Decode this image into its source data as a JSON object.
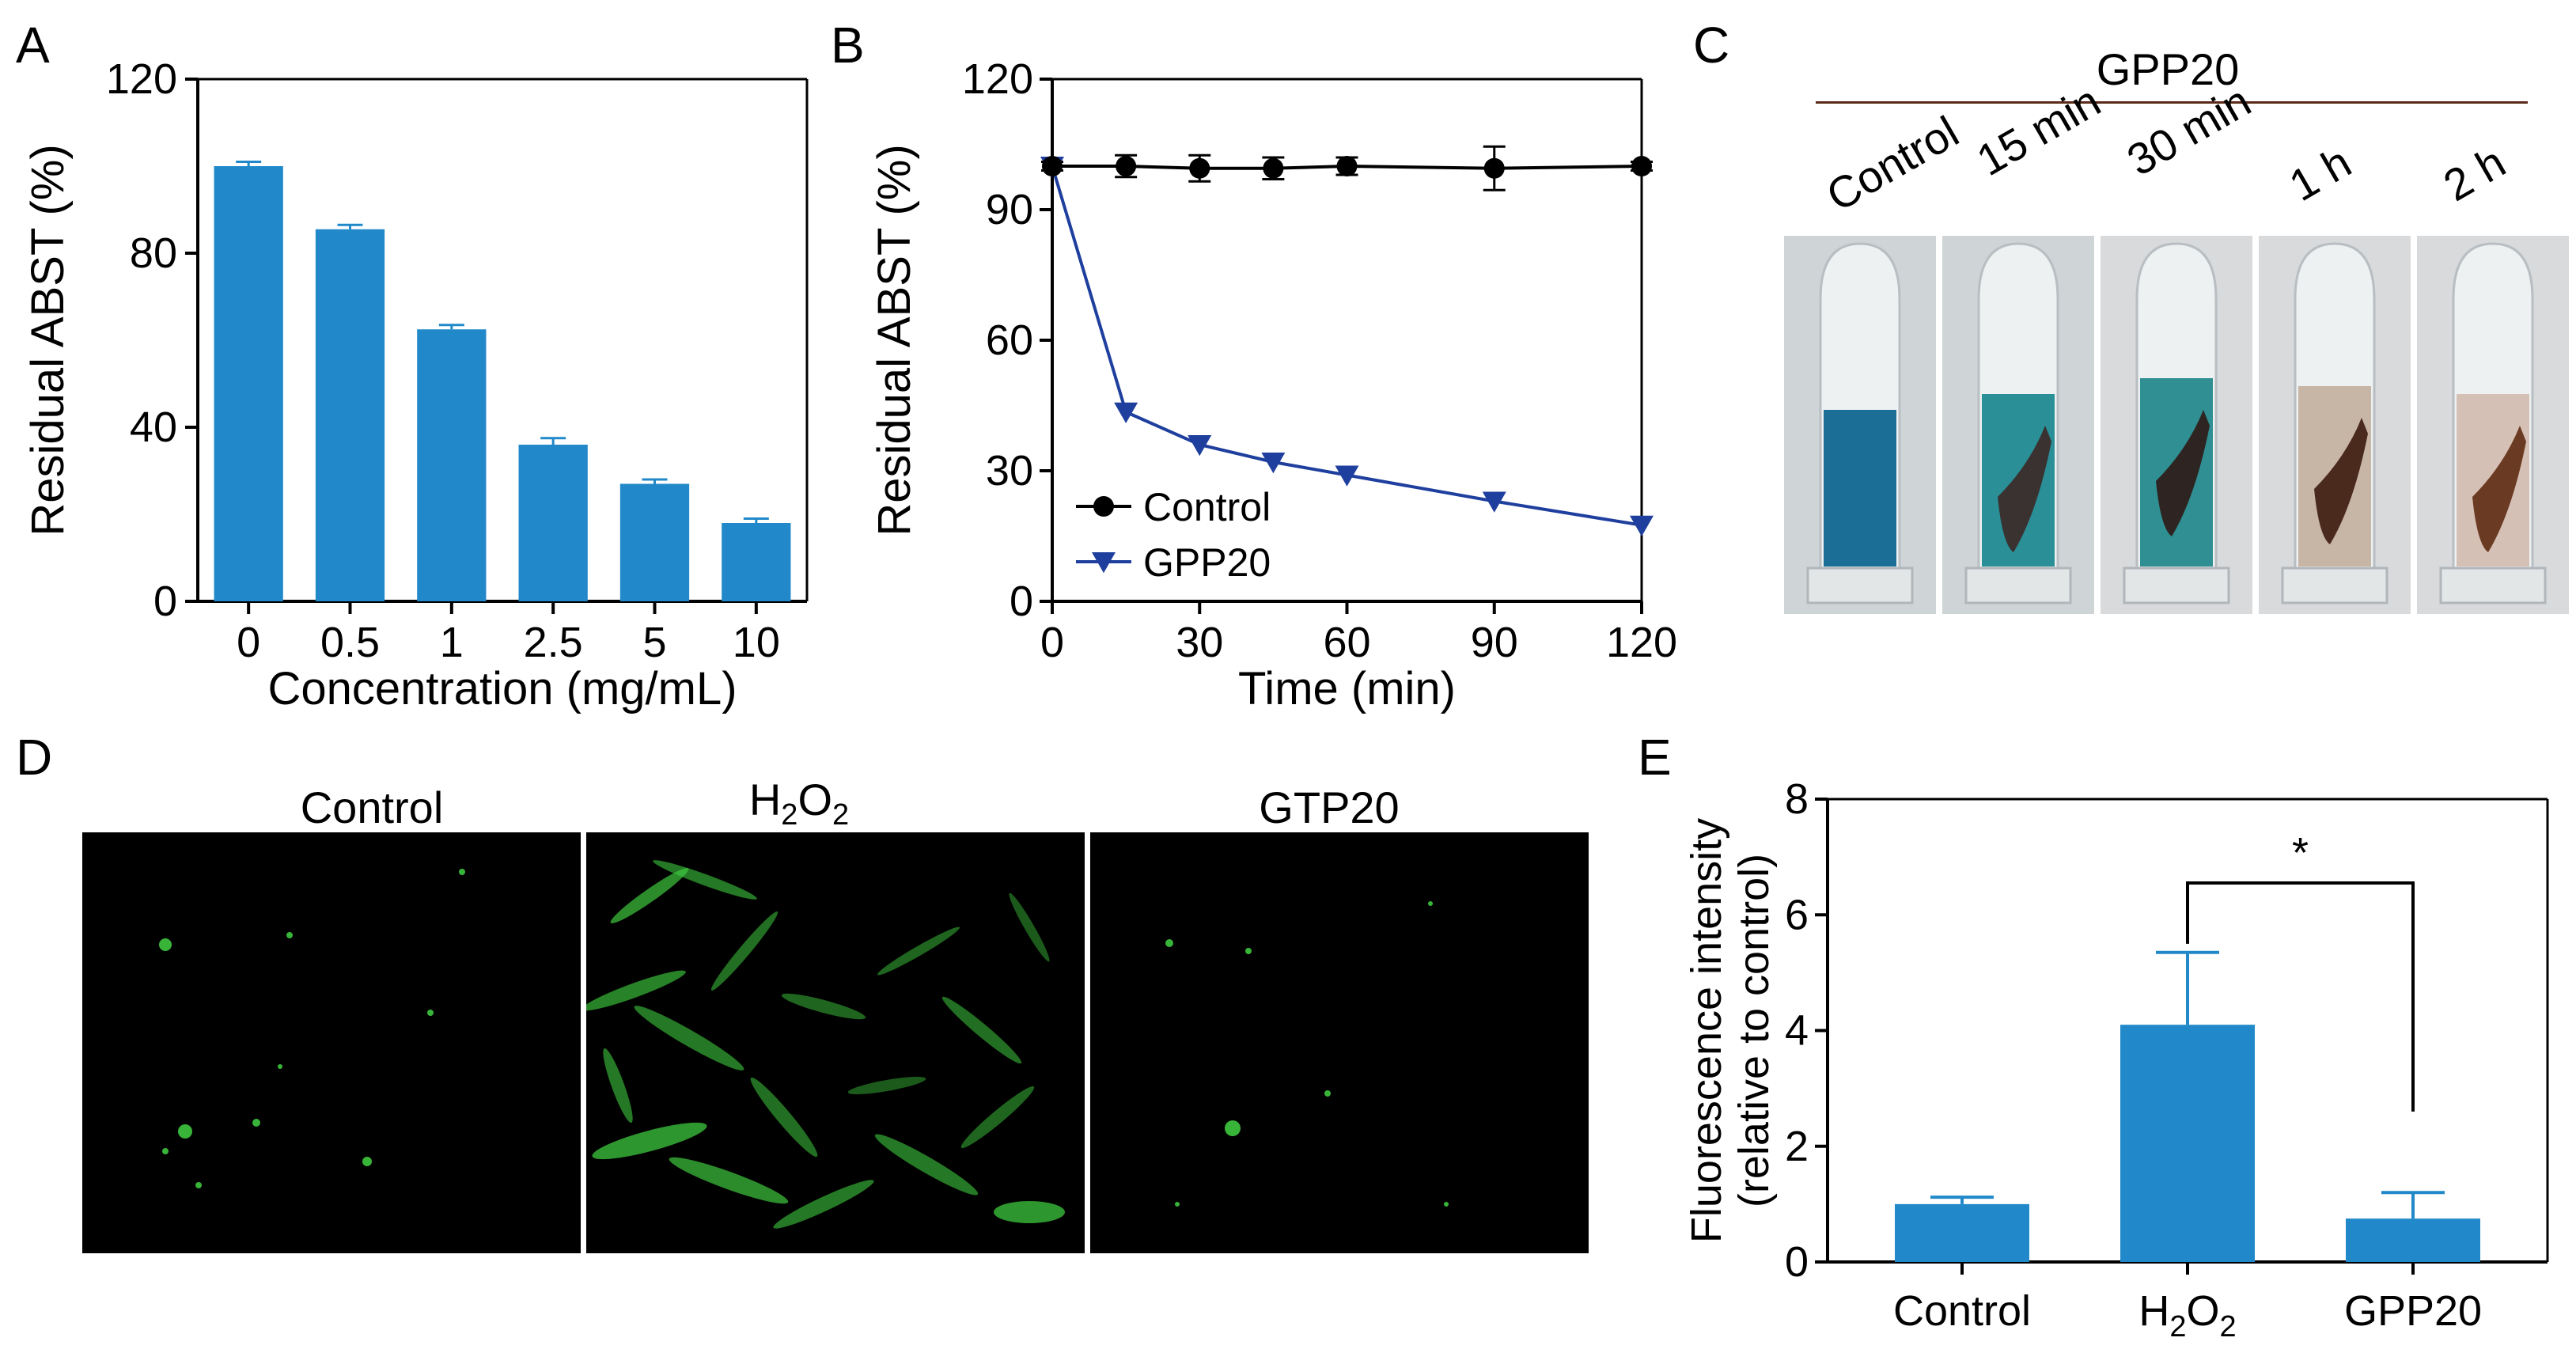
{
  "panels": {
    "a": "A",
    "b": "B",
    "c": "C",
    "d": "D",
    "e": "E"
  },
  "colors": {
    "bar": "#2189c9",
    "control_line": "#000000",
    "gpp20_line": "#1f3f9e",
    "abts_blue": "#1b6e95",
    "fluor_green": "#3ec83e"
  },
  "chart_data": [
    {
      "panel": "A",
      "type": "bar",
      "categories": [
        "0",
        "0.5",
        "1",
        "2.5",
        "5",
        "10"
      ],
      "values": [
        100,
        85.5,
        62.5,
        36,
        27,
        18
      ],
      "errors": [
        1,
        1,
        1,
        1.5,
        1,
        1
      ],
      "xlabel": "Concentration (mg/mL)",
      "ylabel": "Residual ABST (%)",
      "ylim": [
        0,
        120
      ],
      "yticks": [
        "0",
        "40",
        "80",
        "120"
      ]
    },
    {
      "panel": "B",
      "type": "line",
      "x": [
        0,
        15,
        30,
        45,
        60,
        90,
        120
      ],
      "series": [
        {
          "name": "Control",
          "marker": "circle",
          "values": [
            100,
            100,
            99.5,
            99.5,
            100,
            99.5,
            100
          ],
          "errors": [
            1,
            2.5,
            3,
            2.5,
            2,
            5,
            1
          ]
        },
        {
          "name": "GPP20",
          "marker": "triangle-down",
          "values": [
            100,
            43.5,
            36,
            32,
            29,
            23,
            17.5
          ],
          "errors": [
            0,
            0,
            0,
            0,
            0,
            0,
            0
          ]
        }
      ],
      "xlabel": "Time (min)",
      "ylabel": "Residual ABST (%)",
      "xlim": [
        0,
        120
      ],
      "ylim": [
        0,
        120
      ],
      "xticks": [
        "0",
        "30",
        "60",
        "90",
        "120"
      ],
      "yticks": [
        "0",
        "30",
        "60",
        "90",
        "120"
      ],
      "legend_position": "bottom-left"
    },
    {
      "panel": "E",
      "type": "bar",
      "categories": [
        "Control",
        "H2O2",
        "GPP20"
      ],
      "values": [
        1.0,
        4.1,
        0.75
      ],
      "errors": [
        0.12,
        1.25,
        0.45
      ],
      "ylabel_line1": "Fluorescence intensity",
      "ylabel_line2": "(relative  to control)",
      "ylim": [
        0,
        8
      ],
      "yticks": [
        "0",
        "2",
        "4",
        "6",
        "8"
      ],
      "significance": "*"
    }
  ],
  "panel_c": {
    "group_label": "GPP20",
    "tubes": [
      "Control",
      "15 min",
      "30 min",
      "1 h",
      "2 h"
    ]
  },
  "panel_d": {
    "labels": [
      "Control",
      "H",
      "2",
      "O",
      "2",
      "GTP20"
    ]
  },
  "panel_e_xlabels": {
    "h": "H",
    "sub2a": "2",
    "o": "O",
    "sub2b": "2"
  }
}
